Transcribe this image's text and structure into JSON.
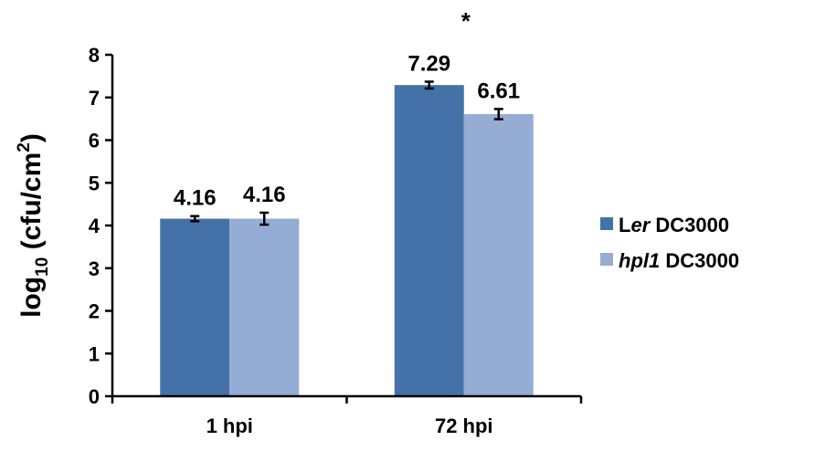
{
  "chart_data": {
    "type": "bar",
    "categories": [
      "1 hpi",
      "72 hpi"
    ],
    "series": [
      {
        "name": "Ler DC3000",
        "name_parts": [
          "L",
          "er",
          " DC3000"
        ],
        "color": "#4472a8",
        "values": [
          4.16,
          7.29
        ],
        "errors": [
          0.06,
          0.08
        ],
        "labels": [
          "4.16",
          "7.29"
        ]
      },
      {
        "name": "hpl1 DC3000",
        "name_parts": [
          "",
          "hpl1",
          " DC3000"
        ],
        "color": "#95acd5",
        "values": [
          4.16,
          6.61
        ],
        "errors": [
          0.14,
          0.12
        ],
        "labels": [
          "4.16",
          "6.61"
        ]
      }
    ],
    "ylabel_parts": [
      "log",
      "10",
      " (cfu/cm",
      "2",
      ")"
    ],
    "ylim": [
      0,
      8
    ],
    "yticks": [
      "0",
      "1",
      "2",
      "3",
      "4",
      "5",
      "6",
      "7",
      "8"
    ],
    "annotations": [
      {
        "text": "*",
        "category": "72 hpi"
      }
    ],
    "grid": false,
    "legend_position": "right"
  }
}
